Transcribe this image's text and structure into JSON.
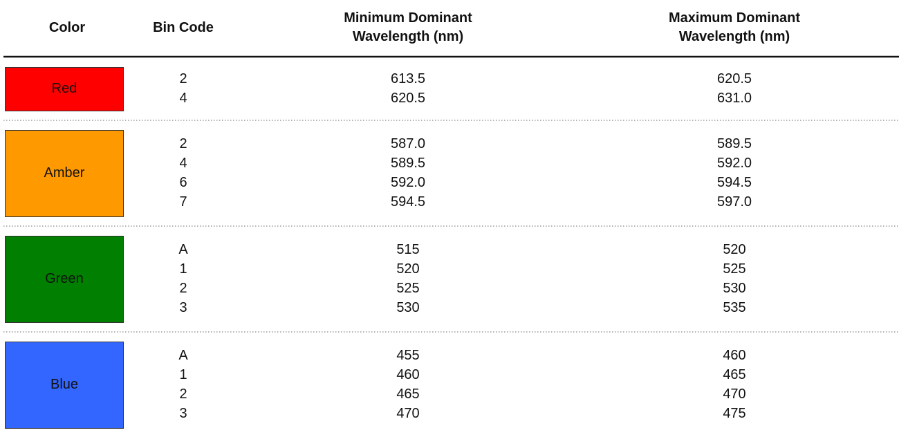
{
  "table": {
    "header": [
      "Color",
      "Bin Code",
      "Minimum Dominant Wavelength (nm)",
      "Maximum Dominant Wavelength (nm)"
    ],
    "groups": [
      {
        "color_name": "Red",
        "color": "#ff0000",
        "rows": [
          [
            "2",
            "613.5",
            "620.5"
          ],
          [
            "4",
            "620.5",
            "631.0"
          ]
        ]
      },
      {
        "color_name": "Amber",
        "color": "#ff9900",
        "rows": [
          [
            "2",
            "587.0",
            "589.5"
          ],
          [
            "4",
            "589.5",
            "592.0"
          ],
          [
            "6",
            "592.0",
            "594.5"
          ],
          [
            "7",
            "594.5",
            "597.0"
          ]
        ]
      },
      {
        "color_name": "Green",
        "color": "#007f00",
        "rows": [
          [
            "A",
            "515",
            "520"
          ],
          [
            "1",
            "520",
            "525"
          ],
          [
            "2",
            "525",
            "530"
          ],
          [
            "3",
            "530",
            "535"
          ]
        ]
      },
      {
        "color_name": "Blue",
        "color": "#3366ff",
        "rows": [
          [
            "A",
            "455",
            "460"
          ],
          [
            "1",
            "460",
            "465"
          ],
          [
            "2",
            "465",
            "470"
          ],
          [
            "3",
            "470",
            "475"
          ]
        ]
      }
    ]
  }
}
